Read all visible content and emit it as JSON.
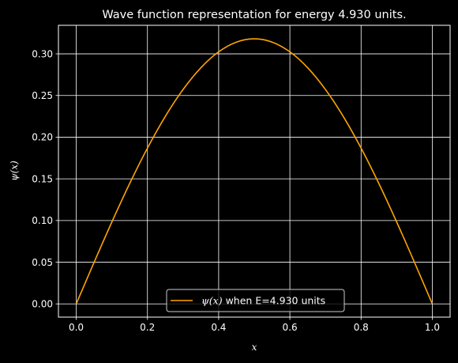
{
  "chart_data": {
    "type": "line",
    "title": "Wave function representation for energy 4.930 units.",
    "xlabel": "x",
    "ylabel": "ψ(x)",
    "xlim": [
      -0.05,
      1.05
    ],
    "ylim": [
      -0.0159,
      0.3342
    ],
    "xticks": [
      0.0,
      0.2,
      0.4,
      0.6,
      0.8,
      1.0
    ],
    "xtick_labels": [
      "0.0",
      "0.2",
      "0.4",
      "0.6",
      "0.8",
      "1.0"
    ],
    "yticks": [
      0.0,
      0.05,
      0.1,
      0.15,
      0.2,
      0.25,
      0.3
    ],
    "ytick_labels": [
      "0.00",
      "0.05",
      "0.10",
      "0.15",
      "0.20",
      "0.25",
      "0.30"
    ],
    "grid": true,
    "legend": {
      "placement": "lower center",
      "entries": [
        {
          "label_math": "ψ(x)",
          "label_text": " when E=4.930 units"
        }
      ]
    },
    "series": [
      {
        "name": "ψ(x) when E=4.930 units",
        "color": "#ffa500",
        "x": [
          0.0,
          0.05,
          0.1,
          0.15,
          0.2,
          0.25,
          0.3,
          0.35,
          0.4,
          0.45,
          0.5,
          0.55,
          0.6,
          0.65,
          0.7,
          0.75,
          0.8,
          0.85,
          0.9,
          0.95,
          1.0
        ],
        "y": [
          0.0,
          0.0497,
          0.0982,
          0.1443,
          0.1869,
          0.2248,
          0.2572,
          0.2833,
          0.3024,
          0.3141,
          0.318,
          0.3141,
          0.3024,
          0.2833,
          0.2572,
          0.2248,
          0.1869,
          0.1443,
          0.0982,
          0.0497,
          0.0
        ]
      }
    ],
    "colors": {
      "background": "#000000",
      "foreground": "#ffffff",
      "line": "#ffa500"
    }
  }
}
